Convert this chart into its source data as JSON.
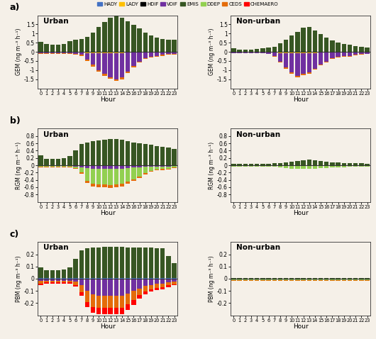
{
  "hours": [
    0,
    1,
    2,
    3,
    4,
    5,
    6,
    7,
    8,
    9,
    10,
    11,
    12,
    13,
    14,
    15,
    16,
    17,
    18,
    19,
    20,
    21,
    22,
    23
  ],
  "legend_labels": [
    "HADY",
    "LADY",
    "HDIF",
    "VDIF",
    "EMIS",
    "DDEP",
    "CEDS",
    "CHEMAERO"
  ],
  "colors": [
    "#4472c4",
    "#ffc000",
    "#000000",
    "#7030a0",
    "#375623",
    "#92d050",
    "#e46c0a",
    "#ff0000"
  ],
  "gem_urban": {
    "HADY": [
      0.0,
      0.0,
      0.0,
      0.0,
      0.0,
      0.0,
      0.0,
      0.0,
      0.0,
      0.0,
      0.0,
      0.0,
      0.0,
      0.0,
      0.0,
      0.0,
      0.0,
      0.0,
      0.0,
      0.0,
      0.0,
      0.0,
      0.0,
      0.0
    ],
    "LADY": [
      -0.04,
      -0.03,
      -0.03,
      -0.03,
      -0.03,
      -0.03,
      -0.04,
      -0.05,
      -0.06,
      -0.06,
      -0.06,
      -0.06,
      -0.06,
      -0.06,
      -0.06,
      -0.05,
      -0.04,
      -0.04,
      -0.04,
      -0.04,
      -0.04,
      -0.04,
      -0.04,
      -0.04
    ],
    "HDIF": [
      0.0,
      0.0,
      0.0,
      0.0,
      0.0,
      0.0,
      0.0,
      0.0,
      0.0,
      0.0,
      0.0,
      0.0,
      0.0,
      0.0,
      0.0,
      0.0,
      0.0,
      0.0,
      0.0,
      0.0,
      0.0,
      0.0,
      0.0,
      0.0
    ],
    "VDIF": [
      -0.04,
      -0.04,
      -0.04,
      -0.04,
      -0.04,
      -0.04,
      -0.06,
      -0.12,
      -0.38,
      -0.65,
      -0.95,
      -1.15,
      -1.32,
      -1.45,
      -1.35,
      -1.05,
      -0.75,
      -0.5,
      -0.3,
      -0.22,
      -0.18,
      -0.13,
      -0.09,
      -0.06
    ],
    "EMIS": [
      0.55,
      0.42,
      0.38,
      0.4,
      0.42,
      0.58,
      0.65,
      0.7,
      0.82,
      1.05,
      1.35,
      1.65,
      1.88,
      1.98,
      1.88,
      1.68,
      1.48,
      1.28,
      1.05,
      0.88,
      0.78,
      0.72,
      0.68,
      0.65
    ],
    "DDEP": [
      0.0,
      0.0,
      0.0,
      0.0,
      0.0,
      0.0,
      0.0,
      0.0,
      0.0,
      0.0,
      0.0,
      0.0,
      0.0,
      0.0,
      0.0,
      0.0,
      0.0,
      0.0,
      0.0,
      0.0,
      0.0,
      0.0,
      0.0,
      0.0
    ],
    "CEDS": [
      -0.04,
      -0.03,
      -0.03,
      -0.03,
      -0.03,
      -0.03,
      -0.04,
      -0.05,
      -0.07,
      -0.09,
      -0.09,
      -0.09,
      -0.09,
      -0.09,
      -0.09,
      -0.07,
      -0.06,
      -0.05,
      -0.05,
      -0.04,
      -0.04,
      -0.04,
      -0.04,
      -0.04
    ],
    "CHEMAERO": [
      0.0,
      0.0,
      0.0,
      0.0,
      0.0,
      0.0,
      0.0,
      0.0,
      0.0,
      0.0,
      0.0,
      0.0,
      0.0,
      0.0,
      0.0,
      0.0,
      0.0,
      0.0,
      0.0,
      0.0,
      0.0,
      0.0,
      0.0,
      0.0
    ]
  },
  "gem_nonurban": {
    "HADY": [
      0.0,
      0.0,
      0.0,
      0.0,
      0.0,
      0.0,
      0.0,
      0.0,
      0.0,
      0.0,
      0.0,
      0.0,
      0.0,
      0.0,
      0.0,
      0.0,
      0.0,
      0.0,
      0.0,
      0.0,
      0.0,
      0.0,
      0.0,
      0.0
    ],
    "LADY": [
      -0.03,
      -0.03,
      -0.03,
      -0.03,
      -0.03,
      -0.03,
      -0.04,
      -0.05,
      -0.06,
      -0.06,
      -0.06,
      -0.06,
      -0.06,
      -0.06,
      -0.06,
      -0.05,
      -0.04,
      -0.04,
      -0.04,
      -0.04,
      -0.04,
      -0.03,
      -0.03,
      -0.03
    ],
    "HDIF": [
      0.0,
      0.0,
      0.0,
      0.0,
      0.0,
      0.0,
      0.0,
      0.0,
      0.0,
      0.0,
      0.0,
      0.0,
      0.0,
      0.0,
      0.0,
      0.0,
      0.0,
      0.0,
      0.0,
      0.0,
      0.0,
      0.0,
      0.0,
      0.0
    ],
    "VDIF": [
      -0.04,
      -0.04,
      -0.04,
      -0.04,
      -0.04,
      -0.04,
      -0.06,
      -0.18,
      -0.48,
      -0.78,
      -1.05,
      -1.25,
      -1.15,
      -1.05,
      -0.85,
      -0.65,
      -0.48,
      -0.32,
      -0.22,
      -0.18,
      -0.18,
      -0.13,
      -0.1,
      -0.08
    ],
    "EMIS": [
      0.18,
      0.13,
      0.13,
      0.13,
      0.16,
      0.18,
      0.22,
      0.28,
      0.48,
      0.68,
      0.88,
      1.08,
      1.32,
      1.38,
      1.18,
      0.98,
      0.78,
      0.62,
      0.52,
      0.42,
      0.38,
      0.33,
      0.28,
      0.23
    ],
    "DDEP": [
      0.0,
      0.0,
      0.0,
      0.0,
      0.0,
      0.0,
      0.0,
      0.0,
      0.0,
      0.0,
      0.0,
      0.0,
      0.0,
      0.0,
      0.0,
      0.0,
      0.0,
      0.0,
      0.0,
      0.0,
      0.0,
      0.0,
      0.0,
      0.0
    ],
    "CEDS": [
      -0.02,
      -0.02,
      -0.02,
      -0.02,
      -0.02,
      -0.02,
      -0.03,
      -0.04,
      -0.05,
      -0.07,
      -0.07,
      -0.07,
      -0.07,
      -0.07,
      -0.06,
      -0.04,
      -0.04,
      -0.03,
      -0.03,
      -0.03,
      -0.03,
      -0.02,
      -0.02,
      -0.02
    ],
    "CHEMAERO": [
      0.0,
      0.0,
      0.0,
      0.0,
      0.0,
      0.0,
      0.0,
      0.0,
      0.0,
      0.0,
      0.0,
      0.0,
      0.0,
      0.0,
      0.0,
      0.0,
      0.0,
      0.0,
      0.0,
      0.0,
      0.0,
      0.0,
      0.0,
      0.0
    ]
  },
  "rgm_urban": {
    "HADY": [
      0.0,
      0.0,
      0.0,
      0.0,
      0.0,
      0.0,
      0.0,
      0.0,
      0.0,
      0.0,
      0.0,
      0.0,
      0.0,
      0.0,
      0.0,
      0.0,
      0.0,
      0.0,
      0.0,
      0.0,
      0.0,
      0.0,
      0.0,
      0.0
    ],
    "LADY": [
      0.0,
      0.0,
      0.0,
      0.0,
      0.0,
      0.0,
      0.0,
      0.0,
      0.0,
      0.0,
      0.0,
      0.0,
      0.0,
      0.0,
      0.0,
      0.0,
      0.0,
      0.0,
      0.0,
      0.0,
      0.0,
      0.0,
      0.0,
      0.0
    ],
    "HDIF": [
      0.0,
      0.0,
      0.0,
      0.0,
      0.0,
      0.0,
      0.0,
      0.0,
      0.0,
      0.0,
      0.0,
      0.0,
      0.0,
      0.0,
      0.0,
      0.0,
      0.0,
      0.0,
      0.0,
      0.0,
      0.0,
      0.0,
      0.0,
      0.0
    ],
    "VDIF": [
      -0.02,
      -0.02,
      -0.02,
      -0.02,
      -0.02,
      -0.02,
      -0.03,
      -0.05,
      -0.08,
      -0.1,
      -0.1,
      -0.1,
      -0.1,
      -0.1,
      -0.09,
      -0.07,
      -0.06,
      -0.05,
      -0.04,
      -0.03,
      -0.03,
      -0.03,
      -0.03,
      -0.02
    ],
    "EMIS": [
      0.28,
      0.18,
      0.18,
      0.18,
      0.2,
      0.25,
      0.4,
      0.58,
      0.62,
      0.65,
      0.68,
      0.7,
      0.72,
      0.72,
      0.7,
      0.65,
      0.62,
      0.6,
      0.58,
      0.56,
      0.52,
      0.5,
      0.48,
      0.45
    ],
    "DDEP": [
      -0.02,
      -0.02,
      -0.02,
      -0.02,
      -0.02,
      -0.02,
      -0.04,
      -0.15,
      -0.35,
      -0.4,
      -0.42,
      -0.43,
      -0.44,
      -0.43,
      -0.42,
      -0.38,
      -0.32,
      -0.26,
      -0.18,
      -0.12,
      -0.08,
      -0.07,
      -0.06,
      -0.04
    ],
    "CEDS": [
      -0.02,
      -0.02,
      -0.02,
      -0.02,
      -0.02,
      -0.02,
      -0.03,
      -0.04,
      -0.06,
      -0.08,
      -0.08,
      -0.08,
      -0.08,
      -0.08,
      -0.08,
      -0.06,
      -0.05,
      -0.04,
      -0.04,
      -0.03,
      -0.03,
      -0.03,
      -0.03,
      -0.02
    ],
    "CHEMAERO": [
      0.0,
      0.0,
      0.0,
      0.0,
      0.0,
      0.0,
      0.0,
      0.0,
      0.0,
      0.0,
      0.0,
      0.0,
      0.0,
      0.0,
      0.0,
      0.0,
      0.0,
      0.0,
      0.0,
      0.0,
      0.0,
      0.0,
      0.0,
      0.0
    ]
  },
  "rgm_nonurban": {
    "HADY": [
      0.0,
      0.0,
      0.0,
      0.0,
      0.0,
      0.0,
      0.0,
      0.0,
      0.0,
      0.0,
      0.0,
      0.0,
      0.0,
      0.0,
      0.0,
      0.0,
      0.0,
      0.0,
      0.0,
      0.0,
      0.0,
      0.0,
      0.0,
      0.0
    ],
    "LADY": [
      0.0,
      0.0,
      0.0,
      0.0,
      0.0,
      0.0,
      0.0,
      0.0,
      0.0,
      0.0,
      0.0,
      0.0,
      0.0,
      0.0,
      0.0,
      0.0,
      0.0,
      0.0,
      0.0,
      0.0,
      0.0,
      0.0,
      0.0,
      0.0
    ],
    "HDIF": [
      0.0,
      0.0,
      0.0,
      0.0,
      0.0,
      0.0,
      0.0,
      0.0,
      0.0,
      0.0,
      0.0,
      0.0,
      0.0,
      0.0,
      0.0,
      0.0,
      0.0,
      0.0,
      0.0,
      0.0,
      0.0,
      0.0,
      0.0,
      0.0
    ],
    "VDIF": [
      -0.02,
      -0.02,
      -0.02,
      -0.02,
      -0.02,
      -0.02,
      -0.02,
      -0.02,
      -0.02,
      -0.02,
      -0.02,
      -0.02,
      -0.02,
      -0.02,
      -0.02,
      -0.02,
      -0.02,
      -0.02,
      -0.02,
      -0.02,
      -0.02,
      -0.02,
      -0.02,
      -0.02
    ],
    "EMIS": [
      0.04,
      0.04,
      0.04,
      0.04,
      0.04,
      0.04,
      0.04,
      0.05,
      0.06,
      0.08,
      0.1,
      0.12,
      0.14,
      0.16,
      0.14,
      0.12,
      0.1,
      0.08,
      0.07,
      0.06,
      0.05,
      0.05,
      0.05,
      0.04
    ],
    "DDEP": [
      -0.02,
      -0.02,
      -0.02,
      -0.02,
      -0.02,
      -0.02,
      -0.02,
      -0.02,
      -0.04,
      -0.06,
      -0.07,
      -0.08,
      -0.08,
      -0.08,
      -0.07,
      -0.06,
      -0.05,
      -0.04,
      -0.03,
      -0.03,
      -0.02,
      -0.02,
      -0.02,
      -0.02
    ],
    "CEDS": [
      0.0,
      0.0,
      0.0,
      0.0,
      0.0,
      0.0,
      0.0,
      0.0,
      0.0,
      0.0,
      0.0,
      0.0,
      0.0,
      0.0,
      0.0,
      0.0,
      0.0,
      0.0,
      0.0,
      0.0,
      0.0,
      0.0,
      0.0,
      0.0
    ],
    "CHEMAERO": [
      0.0,
      0.0,
      0.0,
      0.0,
      0.0,
      0.0,
      0.0,
      0.0,
      0.0,
      0.0,
      0.0,
      0.0,
      0.0,
      0.0,
      0.0,
      0.0,
      0.0,
      0.0,
      0.0,
      0.0,
      0.0,
      0.0,
      0.0,
      0.0
    ]
  },
  "pbm_urban": {
    "HADY": [
      0.005,
      0.005,
      0.005,
      0.005,
      0.005,
      0.005,
      0.005,
      0.005,
      0.005,
      0.005,
      0.005,
      0.005,
      0.005,
      0.005,
      0.005,
      0.005,
      0.005,
      0.005,
      0.005,
      0.005,
      0.005,
      0.005,
      0.005,
      0.005
    ],
    "LADY": [
      0.0,
      0.0,
      0.0,
      0.0,
      0.0,
      0.0,
      0.0,
      0.0,
      0.0,
      0.0,
      0.0,
      0.0,
      0.0,
      0.0,
      0.0,
      0.0,
      0.0,
      0.0,
      0.0,
      0.0,
      0.0,
      0.0,
      0.0,
      0.0
    ],
    "HDIF": [
      0.0,
      0.0,
      0.0,
      0.0,
      0.0,
      0.0,
      0.0,
      0.0,
      0.0,
      0.0,
      0.0,
      0.0,
      0.0,
      0.0,
      0.0,
      0.0,
      0.0,
      0.0,
      0.0,
      0.0,
      0.0,
      0.0,
      0.0,
      0.0
    ],
    "VDIF": [
      -0.02,
      -0.015,
      -0.015,
      -0.015,
      -0.015,
      -0.015,
      -0.025,
      -0.055,
      -0.1,
      -0.13,
      -0.14,
      -0.14,
      -0.14,
      -0.14,
      -0.14,
      -0.12,
      -0.1,
      -0.08,
      -0.06,
      -0.05,
      -0.04,
      -0.04,
      -0.03,
      -0.025
    ],
    "EMIS": [
      0.09,
      0.065,
      0.065,
      0.065,
      0.07,
      0.09,
      0.16,
      0.23,
      0.245,
      0.25,
      0.25,
      0.255,
      0.255,
      0.255,
      0.255,
      0.25,
      0.25,
      0.25,
      0.25,
      0.25,
      0.245,
      0.245,
      0.18,
      0.12
    ],
    "DDEP": [
      0.0,
      0.0,
      0.0,
      0.0,
      0.0,
      0.0,
      0.0,
      0.0,
      0.0,
      0.0,
      0.0,
      0.0,
      0.0,
      0.0,
      0.0,
      0.0,
      0.0,
      0.0,
      0.0,
      0.0,
      0.0,
      0.0,
      0.0,
      0.0
    ],
    "CEDS": [
      -0.02,
      -0.015,
      -0.015,
      -0.015,
      -0.015,
      -0.015,
      -0.025,
      -0.055,
      -0.09,
      -0.1,
      -0.1,
      -0.1,
      -0.1,
      -0.1,
      -0.1,
      -0.09,
      -0.075,
      -0.055,
      -0.045,
      -0.035,
      -0.035,
      -0.03,
      -0.025,
      -0.02
    ],
    "CHEMAERO": [
      -0.015,
      -0.01,
      -0.01,
      -0.01,
      -0.01,
      -0.01,
      -0.015,
      -0.03,
      -0.045,
      -0.05,
      -0.05,
      -0.05,
      -0.05,
      -0.05,
      -0.05,
      -0.045,
      -0.04,
      -0.03,
      -0.025,
      -0.02,
      -0.02,
      -0.015,
      -0.015,
      -0.01
    ]
  },
  "pbm_nonurban": {
    "HADY": [
      0.0,
      0.0,
      0.0,
      0.0,
      0.0,
      0.0,
      0.0,
      0.0,
      0.0,
      0.0,
      0.0,
      0.0,
      0.0,
      0.0,
      0.0,
      0.0,
      0.0,
      0.0,
      0.0,
      0.0,
      0.0,
      0.0,
      0.0,
      0.0
    ],
    "LADY": [
      0.0,
      0.0,
      0.0,
      0.0,
      0.0,
      0.0,
      0.0,
      0.0,
      0.0,
      0.0,
      0.0,
      0.0,
      0.0,
      0.0,
      0.0,
      0.0,
      0.0,
      0.0,
      0.0,
      0.0,
      0.0,
      0.0,
      0.0,
      0.0
    ],
    "HDIF": [
      0.0,
      0.0,
      0.0,
      0.0,
      0.0,
      0.0,
      0.0,
      0.0,
      0.0,
      0.0,
      0.0,
      0.0,
      0.0,
      0.0,
      0.0,
      0.0,
      0.0,
      0.0,
      0.0,
      0.0,
      0.0,
      0.0,
      0.0,
      0.0
    ],
    "VDIF": [
      -0.005,
      -0.005,
      -0.005,
      -0.005,
      -0.005,
      -0.005,
      -0.005,
      -0.005,
      -0.005,
      -0.005,
      -0.005,
      -0.005,
      -0.005,
      -0.005,
      -0.005,
      -0.005,
      -0.005,
      -0.005,
      -0.005,
      -0.005,
      -0.005,
      -0.005,
      -0.005,
      -0.005
    ],
    "EMIS": [
      0.005,
      0.005,
      0.005,
      0.005,
      0.005,
      0.005,
      0.005,
      0.005,
      0.005,
      0.005,
      0.005,
      0.005,
      0.005,
      0.005,
      0.005,
      0.005,
      0.005,
      0.005,
      0.005,
      0.005,
      0.005,
      0.005,
      0.005,
      0.005
    ],
    "DDEP": [
      -0.005,
      -0.005,
      -0.005,
      -0.005,
      -0.005,
      -0.005,
      -0.005,
      -0.005,
      -0.005,
      -0.005,
      -0.005,
      -0.005,
      -0.005,
      -0.005,
      -0.005,
      -0.005,
      -0.005,
      -0.005,
      -0.005,
      -0.005,
      -0.005,
      -0.005,
      -0.005,
      -0.005
    ],
    "CEDS": [
      -0.005,
      -0.005,
      -0.005,
      -0.005,
      -0.005,
      -0.005,
      -0.005,
      -0.005,
      -0.005,
      -0.005,
      -0.005,
      -0.005,
      -0.005,
      -0.005,
      -0.005,
      -0.005,
      -0.005,
      -0.005,
      -0.005,
      -0.005,
      -0.005,
      -0.005,
      -0.005,
      -0.005
    ],
    "CHEMAERO": [
      0.0,
      0.0,
      0.0,
      0.0,
      0.0,
      0.0,
      0.0,
      0.0,
      0.0,
      0.0,
      0.0,
      0.0,
      0.0,
      0.0,
      0.0,
      0.0,
      0.0,
      0.0,
      0.0,
      0.0,
      0.0,
      0.0,
      0.0,
      0.0
    ]
  },
  "ylims": {
    "gem": [
      -2.0,
      2.0
    ],
    "rgm": [
      -1.0,
      1.0
    ],
    "pbm": [
      -0.3,
      0.3
    ]
  },
  "yticks": {
    "gem": [
      -1.5,
      -1.0,
      -0.5,
      0.0,
      0.5,
      1.0,
      1.5
    ],
    "rgm": [
      -0.8,
      -0.6,
      -0.4,
      -0.2,
      0.0,
      0.2,
      0.4,
      0.6,
      0.8
    ],
    "pbm": [
      -0.2,
      -0.1,
      0.0,
      0.1,
      0.2
    ]
  },
  "ylabels": {
    "gem": "GEM (ng m⁻³ h⁻¹)",
    "rgm": "RGM (ng m⁻³ h⁻¹)",
    "pbm": "PBM (ng m⁻³ h⁻¹)"
  },
  "bg_color": "#f5f0e8",
  "panel_labels": [
    "a)",
    "b)",
    "c)"
  ]
}
